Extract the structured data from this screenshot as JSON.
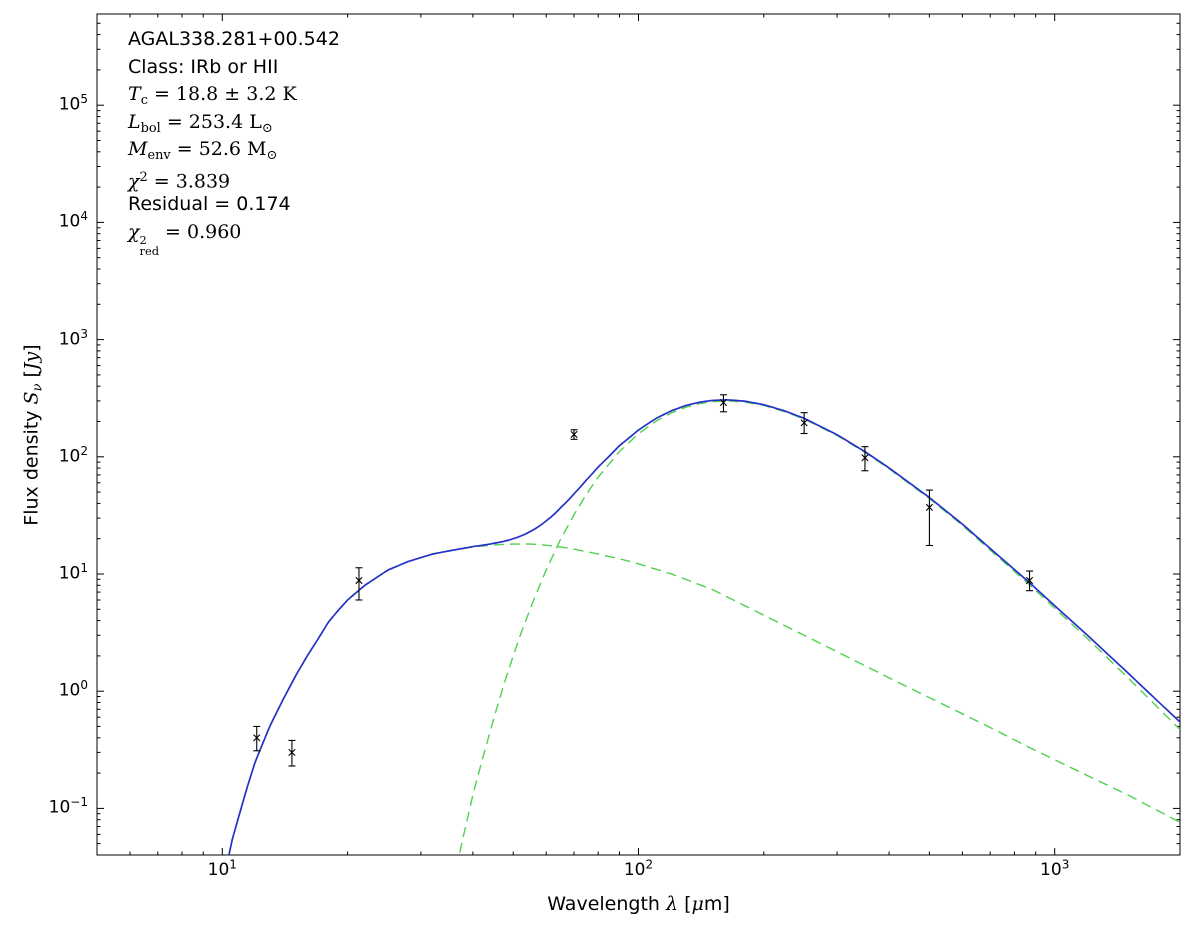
{
  "figure": {
    "background": "#ffffff",
    "axes_color": "#000000"
  },
  "chart_data": {
    "type": "line",
    "title": "",
    "x_scale": "log",
    "y_scale": "log",
    "xlim": [
      5,
      2000
    ],
    "ylim": [
      0.04,
      600000
    ],
    "grid": false,
    "legend": null,
    "xlabel_tokens": [
      {
        "t": "Wavelength ",
        "s": "sans"
      },
      {
        "t": "λ",
        "s": "it"
      },
      {
        "t": " [",
        "s": "sans"
      },
      {
        "t": "μ",
        "s": "it"
      },
      {
        "t": "m]",
        "s": "sans"
      }
    ],
    "ylabel_tokens": [
      {
        "t": "Flux density ",
        "s": "sans"
      },
      {
        "t": "S",
        "s": "it"
      },
      {
        "t": "ν",
        "s": "subit"
      },
      {
        "t": " [",
        "s": "sans"
      },
      {
        "t": "Jy",
        "s": "it"
      },
      {
        "t": "]",
        "s": "sans"
      }
    ],
    "x_ticks": [
      {
        "exp": 1
      },
      {
        "exp": 2
      },
      {
        "exp": 3
      }
    ],
    "y_ticks": [
      {
        "exp": -1
      },
      {
        "exp": 0
      },
      {
        "exp": 1
      },
      {
        "exp": 2
      },
      {
        "exp": 3
      },
      {
        "exp": 4
      },
      {
        "exp": 5
      }
    ],
    "annotation": {
      "lines": [
        {
          "font": "sans",
          "name": "source-name",
          "tokens": [
            {
              "t": "AGAL338.281+00.542",
              "s": "sans"
            }
          ]
        },
        {
          "font": "sans",
          "name": "class-line",
          "tokens": [
            {
              "t": "Class: IRb or HII",
              "s": "sans"
            }
          ]
        },
        {
          "font": "math",
          "name": "dust-temperature",
          "tokens": [
            {
              "t": "T",
              "s": "it"
            },
            {
              "t": "c",
              "s": "sub"
            },
            {
              "t": " = 18.8 ± 3.2 K",
              "s": "rm"
            }
          ]
        },
        {
          "font": "math",
          "name": "bolometric-luminosity",
          "tokens": [
            {
              "t": "L",
              "s": "it"
            },
            {
              "t": "bol",
              "s": "sub"
            },
            {
              "t": " = 253.4 L",
              "s": "rm"
            },
            {
              "t": "⊙",
              "s": "sub"
            }
          ]
        },
        {
          "font": "math",
          "name": "envelope-mass",
          "tokens": [
            {
              "t": "M",
              "s": "it"
            },
            {
              "t": "env",
              "s": "sub"
            },
            {
              "t": " = 52.6 M",
              "s": "rm"
            },
            {
              "t": "⊙",
              "s": "sub"
            }
          ]
        },
        {
          "font": "math",
          "name": "chi-squared",
          "tokens": [
            {
              "t": "χ",
              "s": "it"
            },
            {
              "t": "2",
              "s": "sup"
            },
            {
              "t": " = 3.839",
              "s": "rm"
            }
          ]
        },
        {
          "font": "sans",
          "name": "residual",
          "tokens": [
            {
              "t": "Residual = 0.174",
              "s": "sans"
            }
          ]
        },
        {
          "font": "math",
          "name": "reduced-chi-squared",
          "tokens": [
            {
              "t": "χ",
              "s": "it"
            },
            {
              "s": "supsub",
              "sup": "2",
              "sub": "red"
            },
            {
              "t": " = 0.960",
              "s": "rm"
            }
          ]
        }
      ]
    },
    "series": [
      {
        "name": "cold-component",
        "label": "cold greybody component (T = 18.8 K)",
        "style": "dashed",
        "color": "#50d050",
        "points": [
          [
            34,
            0.009
          ],
          [
            36,
            0.025
          ],
          [
            38,
            0.059
          ],
          [
            40,
            0.13
          ],
          [
            42,
            0.25
          ],
          [
            45,
            0.6
          ],
          [
            48,
            1.29
          ],
          [
            50,
            2.0
          ],
          [
            52,
            3.0
          ],
          [
            55,
            5.1
          ],
          [
            57,
            7.0
          ],
          [
            60,
            10.8
          ],
          [
            65,
            19.8
          ],
          [
            70,
            32
          ],
          [
            75,
            48
          ],
          [
            80,
            67
          ],
          [
            90,
            111
          ],
          [
            100,
            157
          ],
          [
            110,
            201
          ],
          [
            120,
            237
          ],
          [
            130,
            265
          ],
          [
            140,
            284
          ],
          [
            150,
            295
          ],
          [
            163,
            300
          ],
          [
            180,
            293
          ],
          [
            200,
            274
          ],
          [
            225,
            242
          ],
          [
            250,
            210
          ],
          [
            300,
            152
          ],
          [
            350,
            109
          ],
          [
            400,
            79
          ],
          [
            500,
            44
          ],
          [
            600,
            26
          ],
          [
            700,
            16
          ],
          [
            870,
            8.1
          ],
          [
            1000,
            5.1
          ],
          [
            1200,
            2.8
          ],
          [
            1500,
            1.3
          ],
          [
            2000,
            0.47
          ]
        ]
      },
      {
        "name": "warm-component",
        "label": "warm component",
        "style": "dashed",
        "color": "#50d050",
        "points": [
          [
            10.0,
            0.02
          ],
          [
            10.5,
            0.05
          ],
          [
            11,
            0.09
          ],
          [
            11.5,
            0.155
          ],
          [
            12,
            0.25
          ],
          [
            13,
            0.5
          ],
          [
            14,
            0.85
          ],
          [
            15,
            1.35
          ],
          [
            16,
            2.0
          ],
          [
            17,
            2.8
          ],
          [
            18,
            3.9
          ],
          [
            19,
            4.9
          ],
          [
            20,
            6.0
          ],
          [
            22,
            8.0
          ],
          [
            25,
            10.8
          ],
          [
            28,
            12.8
          ],
          [
            32,
            14.8
          ],
          [
            36,
            16.0
          ],
          [
            40,
            17.0
          ],
          [
            45,
            17.7
          ],
          [
            50,
            18.0
          ],
          [
            55,
            18.0
          ],
          [
            60,
            17.6
          ],
          [
            65,
            17.0
          ],
          [
            70,
            16.3
          ],
          [
            80,
            14.8
          ],
          [
            90,
            13.5
          ],
          [
            100,
            12.2
          ],
          [
            120,
            10.0
          ],
          [
            150,
            7.4
          ],
          [
            200,
            4.45
          ],
          [
            250,
            3.0
          ],
          [
            300,
            2.17
          ],
          [
            350,
            1.65
          ],
          [
            400,
            1.3
          ],
          [
            500,
            0.88
          ],
          [
            700,
            0.49
          ],
          [
            870,
            0.33
          ],
          [
            1000,
            0.26
          ],
          [
            1200,
            0.19
          ],
          [
            1500,
            0.13
          ],
          [
            2000,
            0.076
          ]
        ]
      },
      {
        "name": "total-model",
        "label": "total model fit",
        "style": "solid",
        "color": "#2531c9",
        "derived_from": [
          "cold-component",
          "warm-component"
        ]
      }
    ],
    "data_points": {
      "marker": "x",
      "color": "#000000",
      "columns": [
        "wavelength_um",
        "flux_jy",
        "err_lo_jy",
        "err_hi_jy"
      ],
      "values": [
        [
          12.1,
          0.4,
          0.31,
          0.5
        ],
        [
          14.7,
          0.3,
          0.23,
          0.38
        ],
        [
          21.3,
          8.8,
          6.0,
          11.3
        ],
        [
          70,
          155,
          141,
          170
        ],
        [
          160,
          290,
          242,
          338
        ],
        [
          250,
          195,
          158,
          238
        ],
        [
          350,
          98,
          76,
          122
        ],
        [
          500,
          37,
          17.5,
          52
        ],
        [
          870,
          8.8,
          7.2,
          10.6
        ]
      ]
    }
  }
}
